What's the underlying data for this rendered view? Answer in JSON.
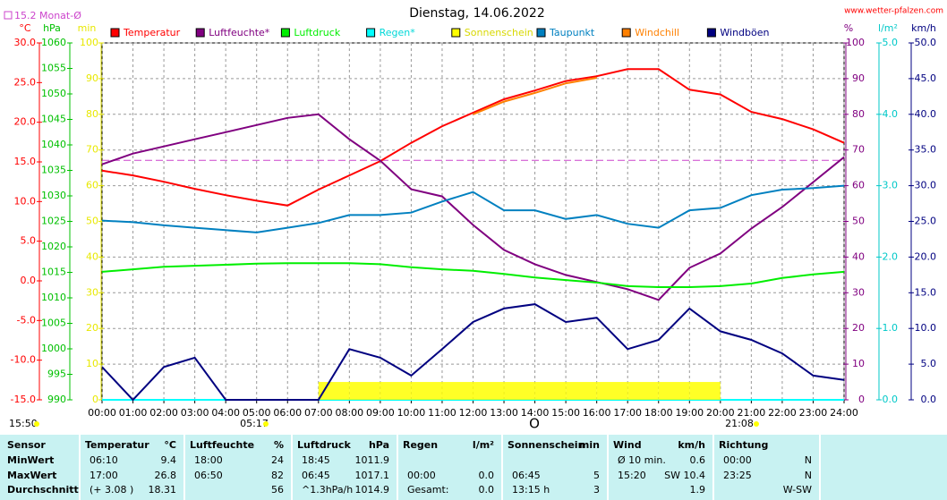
{
  "chart_data": {
    "type": "line",
    "title": "Dienstag, 14.06.2022",
    "source": "www.wetter-pfalzen.com",
    "categories": [
      "00:00",
      "01:00",
      "02:00",
      "03:00",
      "04:00",
      "05:00",
      "06:00",
      "07:00",
      "08:00",
      "09:00",
      "10:00",
      "11:00",
      "12:00",
      "13:00",
      "14:00",
      "15:00",
      "16:00",
      "17:00",
      "18:00",
      "19:00",
      "20:00",
      "21:00",
      "22:00",
      "23:00",
      "24:00"
    ],
    "grid": true,
    "axes": [
      {
        "label": "°C",
        "color": "#ff0000",
        "lim": [
          -15,
          30
        ],
        "ticks": [
          {
            "value": -15,
            "label": "-15.0"
          },
          {
            "value": -10,
            "label": "-10.0"
          },
          {
            "value": -5,
            "label": "-5.0"
          },
          {
            "value": 0,
            "label": "0.0"
          },
          {
            "value": 5,
            "label": "5.0"
          },
          {
            "value": 10,
            "label": "10.0"
          },
          {
            "value": 15,
            "label": "15.0"
          },
          {
            "value": 20,
            "label": "20.0"
          },
          {
            "value": 25,
            "label": "25.0"
          },
          {
            "value": 30,
            "label": "30.0"
          }
        ]
      },
      {
        "label": "hPa",
        "color": "#00c000",
        "lim": [
          990,
          1060
        ],
        "ticks": [
          990,
          995,
          1000,
          1005,
          1010,
          1015,
          1020,
          1025,
          1030,
          1035,
          1040,
          1045,
          1050,
          1055,
          1060
        ]
      },
      {
        "label": "min",
        "color": "#e8e800",
        "lim": [
          0,
          100
        ],
        "ticks": [
          0,
          10,
          20,
          30,
          40,
          50,
          60,
          70,
          80,
          90,
          100
        ]
      },
      {
        "label": "%",
        "color": "#800080",
        "lim": [
          0,
          100
        ],
        "ticks": [
          0,
          10,
          20,
          30,
          40,
          50,
          60,
          70,
          80,
          90,
          100
        ]
      },
      {
        "label": "l/m²",
        "color": "#00c8c8",
        "lim": [
          0,
          5
        ],
        "ticks": [
          {
            "value": 0,
            "label": "0.0"
          },
          {
            "value": 1,
            "label": "1.0"
          },
          {
            "value": 2,
            "label": "2.0"
          },
          {
            "value": 3,
            "label": "3.0"
          },
          {
            "value": 4,
            "label": "4.0"
          },
          {
            "value": 5,
            "label": "5.0"
          }
        ]
      },
      {
        "label": "km/h",
        "color": "#000080",
        "lim": [
          0,
          50
        ],
        "ticks": [
          {
            "value": 0,
            "label": "0.0"
          },
          {
            "value": 5,
            "label": "5.0"
          },
          {
            "value": 10,
            "label": "10.0"
          },
          {
            "value": 15,
            "label": "15.0"
          },
          {
            "value": 20,
            "label": "20.0"
          },
          {
            "value": 25,
            "label": "25.0"
          },
          {
            "value": 30,
            "label": "30.0"
          },
          {
            "value": 35,
            "label": "35.0"
          },
          {
            "value": 40,
            "label": "40.0"
          },
          {
            "value": 45,
            "label": "45.0"
          },
          {
            "value": 50,
            "label": "50.0"
          }
        ]
      }
    ],
    "reference": {
      "label": "15.2 Monat-Ø",
      "value": 15.2,
      "axis": 0,
      "color": "#cc44cc"
    },
    "series": [
      {
        "name": "Temperatur",
        "color": "#ff0000",
        "axis": 0,
        "values": [
          13.9,
          13.3,
          12.5,
          11.6,
          10.8,
          10.1,
          9.5,
          11.5,
          13.3,
          15.1,
          17.4,
          19.5,
          21.2,
          22.9,
          24.0,
          25.2,
          25.8,
          26.7,
          26.7,
          24.1,
          23.5,
          21.3,
          20.4,
          19.1,
          17.4
        ]
      },
      {
        "name": "Luftfeuchte*",
        "color": "#800080",
        "axis": 3,
        "values": [
          66,
          69,
          71,
          73,
          75,
          77,
          79,
          80,
          73,
          67,
          59,
          57,
          49,
          42,
          38,
          35,
          33,
          31,
          28,
          37,
          41,
          48,
          54,
          61,
          68
        ]
      },
      {
        "name": "Luftdruck",
        "color": "#00ee00",
        "axis": 1,
        "values": [
          1015.1,
          1015.6,
          1016.1,
          1016.3,
          1016.5,
          1016.7,
          1016.8,
          1016.8,
          1016.8,
          1016.6,
          1016.0,
          1015.6,
          1015.3,
          1014.7,
          1014.0,
          1013.5,
          1013.0,
          1012.3,
          1012.1,
          1012.1,
          1012.3,
          1012.8,
          1013.9,
          1014.6,
          1015.1
        ]
      },
      {
        "name": "Regen*",
        "color": "#00ffff",
        "axis": 4,
        "values": [
          0,
          0,
          0,
          0,
          0,
          0,
          0,
          0,
          0,
          0,
          0,
          0,
          0,
          0,
          0,
          0,
          0,
          0,
          0,
          0,
          0,
          0,
          0,
          0,
          0
        ]
      },
      {
        "name": "Sonnenschein",
        "color": "#ffff00",
        "axis": 2,
        "kind": "bars",
        "values": [
          0,
          0,
          0,
          0,
          0,
          0,
          0,
          5,
          5,
          5,
          5,
          5,
          5,
          5,
          5,
          5,
          5,
          5,
          5,
          5,
          0,
          0,
          0,
          0,
          0
        ]
      },
      {
        "name": "Taupunkt",
        "color": "#0080c0",
        "axis": 0,
        "values": [
          7.6,
          7.4,
          7.0,
          6.7,
          6.4,
          6.1,
          6.7,
          7.3,
          8.3,
          8.3,
          8.6,
          10.0,
          11.2,
          8.9,
          8.9,
          7.8,
          8.3,
          7.2,
          6.7,
          8.9,
          9.2,
          10.8,
          11.5,
          11.7,
          12.0
        ]
      },
      {
        "name": "Windchill",
        "color": "#ff8000",
        "axis": 0,
        "values": [
          null,
          null,
          null,
          null,
          null,
          null,
          null,
          null,
          null,
          null,
          null,
          null,
          21.0,
          22.6,
          23.7,
          24.9,
          25.6,
          null,
          null,
          null,
          null,
          null,
          null,
          null,
          null
        ]
      },
      {
        "name": "Windböen",
        "color": "#000080",
        "axis": 5,
        "values": [
          4.6,
          0,
          4.6,
          5.9,
          0,
          0,
          0,
          0,
          7.1,
          5.9,
          3.4,
          7.1,
          10.9,
          12.8,
          13.4,
          10.9,
          11.5,
          7.1,
          8.4,
          12.8,
          9.6,
          8.4,
          6.5,
          3.4,
          2.8
        ]
      }
    ],
    "annotations": [
      "15:50",
      "05:17",
      "O",
      "21:08"
    ]
  },
  "table": {
    "header": [
      "Sensor",
      "Temperatur",
      "°C",
      "Luftfeuchte",
      "%",
      "Luftdruck",
      "hPa",
      "Regen",
      "l/m²",
      "Sonnenschein",
      "min",
      "Wind",
      "km/h",
      "Richtung"
    ],
    "rows": [
      {
        "label": "MinWert",
        "cells": [
          "06:10",
          "9.4",
          "18:00",
          "24",
          "18:45",
          "1011.9",
          null,
          null,
          null,
          null,
          "Ø 10 min.",
          "0.6",
          "00:00",
          "N"
        ]
      },
      {
        "label": "MaxWert",
        "cells": [
          "17:00",
          "26.8",
          "06:50",
          "82",
          "06:45",
          "1017.1",
          "00:00",
          "0.0",
          "06:45",
          "5",
          "15:20",
          "SW 10.4",
          "23:25",
          "N"
        ]
      },
      {
        "label": "Durchschnitt",
        "cells": [
          "(+ 3.08 )",
          "18.31",
          null,
          "56",
          "^1.3hPa/h",
          "1014.9",
          "Gesamt:",
          "0.0",
          "13:15 h",
          "3",
          null,
          "1.9",
          null,
          "W-SW"
        ]
      }
    ]
  }
}
